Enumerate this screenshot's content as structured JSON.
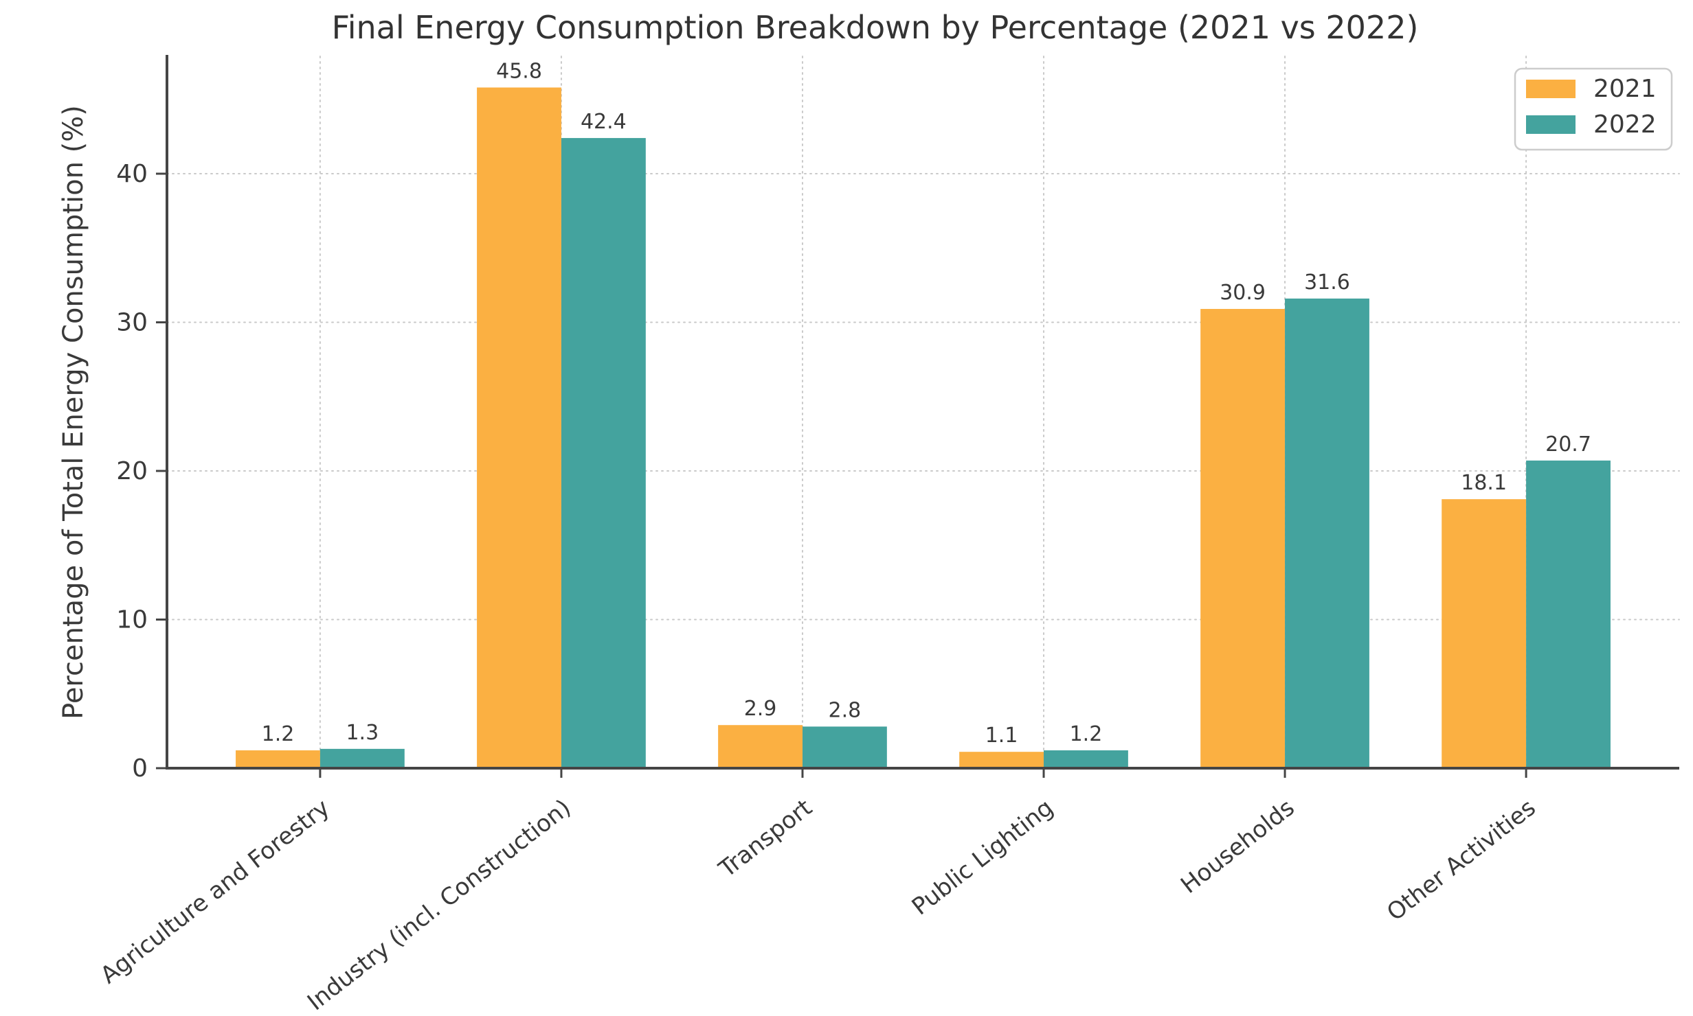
{
  "chart_data": {
    "type": "bar",
    "title": "Final Energy Consumption Breakdown by Percentage (2021 vs 2022)",
    "xlabel": "",
    "ylabel": "Percentage of Total Energy Consumption (%)",
    "categories": [
      "Agriculture and Forestry",
      "Industry (incl. Construction)",
      "Transport",
      "Public Lighting",
      "Households",
      "Other Activities"
    ],
    "series": [
      {
        "name": "2021",
        "color": "#FBB042",
        "values": [
          1.2,
          45.8,
          2.9,
          1.1,
          30.9,
          18.1
        ]
      },
      {
        "name": "2022",
        "color": "#44A39E",
        "values": [
          1.3,
          42.4,
          2.8,
          1.2,
          31.6,
          20.7
        ]
      }
    ],
    "yticks": [
      0,
      10,
      20,
      30,
      40
    ],
    "ylim": [
      0,
      47.9
    ],
    "grid": true,
    "gridline_style": "dotted",
    "legend_position": "upper right",
    "colors": {
      "text": "#3a3a3a",
      "grid": "#c9c9c9",
      "spine": "#454545",
      "background": "#ffffff",
      "legend_border": "#cccccc"
    }
  }
}
